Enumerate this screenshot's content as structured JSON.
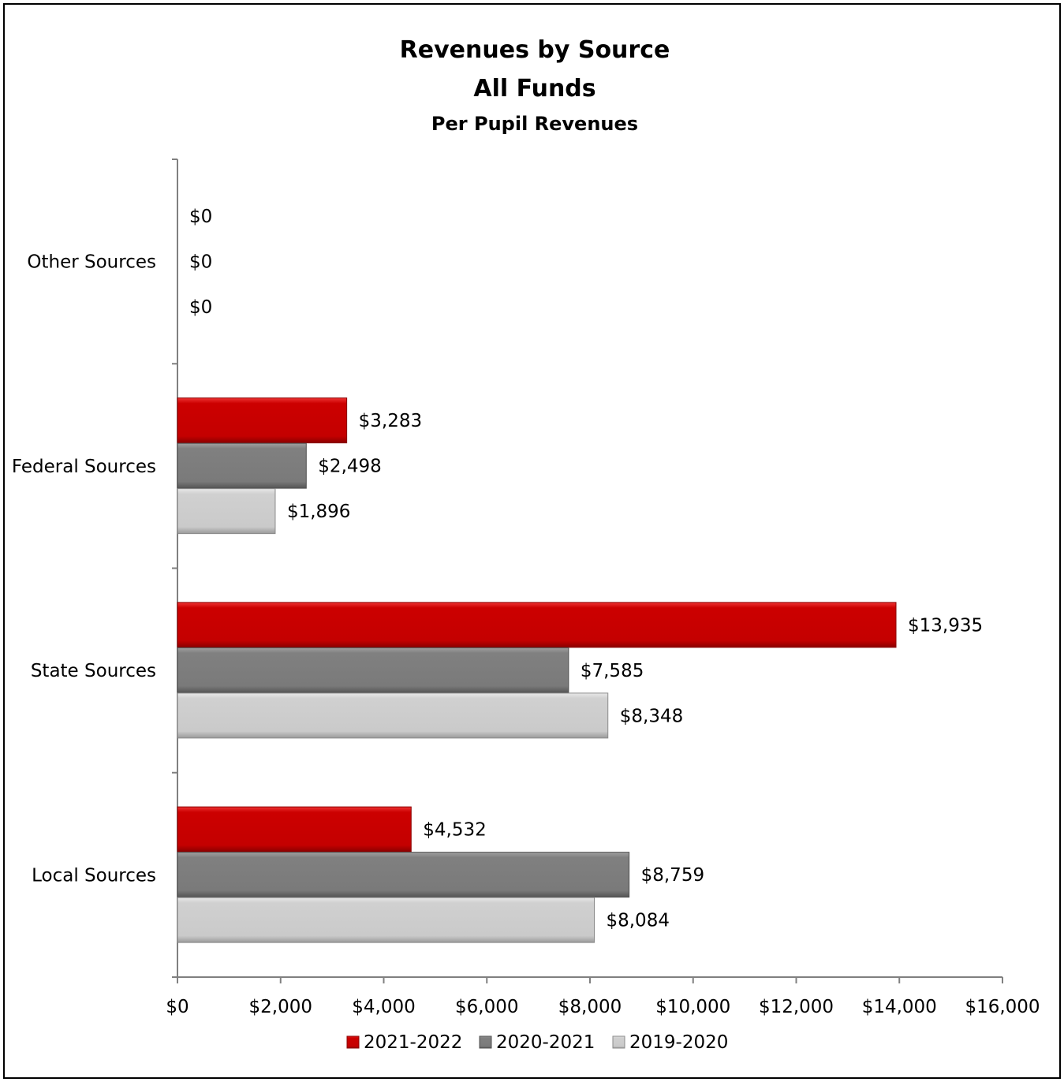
{
  "chart_data": {
    "type": "bar",
    "orientation": "horizontal",
    "title": "Revenues by Source",
    "title2": "All Funds",
    "subtitle": "Per Pupil Revenues",
    "categories": [
      "Other Sources",
      "Federal Sources",
      "State Sources",
      "Local Sources"
    ],
    "series": [
      {
        "name": "2021-2022",
        "color": "#cc0000",
        "values": [
          0,
          3283,
          13935,
          4532
        ],
        "labels": [
          "$0",
          "$3,283",
          "$13,935",
          "$4,532"
        ]
      },
      {
        "name": "2020-2021",
        "color": "#7f7f7f",
        "values": [
          0,
          2498,
          7585,
          8759
        ],
        "labels": [
          "$0",
          "$2,498",
          "$7,585",
          "$8,759"
        ]
      },
      {
        "name": "2019-2020",
        "color": "#cccccc",
        "values": [
          0,
          1896,
          8348,
          8084
        ],
        "labels": [
          "$0",
          "$1,896",
          "$8,348",
          "$8,084"
        ]
      }
    ],
    "xlim": [
      0,
      16000
    ],
    "xticks": [
      0,
      2000,
      4000,
      6000,
      8000,
      10000,
      12000,
      14000,
      16000
    ],
    "xtick_labels": [
      "$0",
      "$2,000",
      "$4,000",
      "$6,000",
      "$8,000",
      "$10,000",
      "$12,000",
      "$14,000",
      "$16,000"
    ],
    "grid": false,
    "legend_position": "bottom"
  }
}
